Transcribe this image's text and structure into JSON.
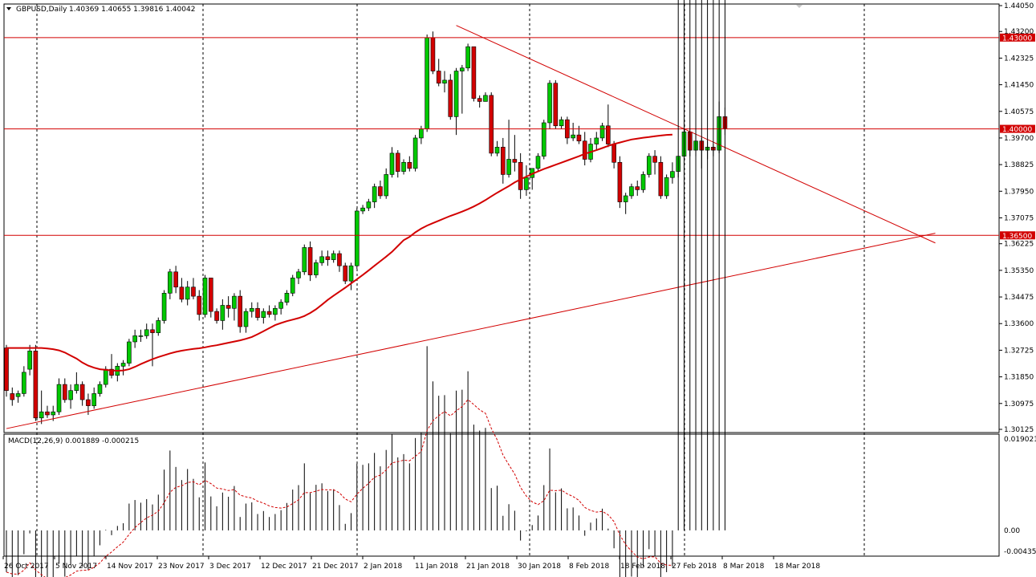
{
  "chart_data": {
    "type": "candlestick",
    "title": "GBPUSD,Daily",
    "ohlc_text": "1.40369 1.40655 1.39816 1.40042",
    "colors": {
      "bull": "#00c800",
      "bear": "#d20000",
      "ma": "#d20000",
      "line": "#d20000",
      "grid": "#000000",
      "macd_hist": "#000000",
      "macd_signal": "#d20000"
    },
    "y_ticks": [
      "1.44050",
      "1.43200",
      "1.42325",
      "1.41450",
      "1.40575",
      "1.39700",
      "1.38825",
      "1.37950",
      "1.37075",
      "1.36225",
      "1.35350",
      "1.34475",
      "1.33600",
      "1.32725",
      "1.31850",
      "1.30975",
      "1.30125"
    ],
    "x_labels": [
      "26 Oct 2017",
      "5 Nov 2017",
      "14 Nov 2017",
      "23 Nov 2017",
      "3 Dec 2017",
      "12 Dec 2017",
      "21 Dec 2017",
      "2 Jan 2018",
      "11 Jan 2018",
      "21 Jan 2018",
      "30 Jan 2018",
      "8 Feb 2018",
      "18 Feb 2018",
      "27 Feb 2018",
      "8 Mar 2018",
      "18 Mar 2018"
    ],
    "ylim": [
      1.30125,
      1.4405
    ],
    "horizontal_levels": [
      {
        "value": 1.43,
        "label": "1.43000"
      },
      {
        "value": 1.4,
        "label": "1.40000"
      },
      {
        "value": 1.365,
        "label": "1.36500"
      }
    ],
    "trendlines": [
      {
        "from": [
          0,
          1.3015
        ],
        "to": [
          159,
          1.3657
        ]
      },
      {
        "from": [
          77,
          1.434
        ],
        "to": [
          159,
          1.3625
        ]
      }
    ],
    "candles": [
      [
        1.328,
        1.329,
        1.312,
        1.314
      ],
      [
        1.313,
        1.315,
        1.309,
        1.311
      ],
      [
        1.312,
        1.314,
        1.31,
        1.313
      ],
      [
        1.313,
        1.322,
        1.312,
        1.32
      ],
      [
        1.321,
        1.329,
        1.319,
        1.327
      ],
      [
        1.327,
        1.329,
        1.304,
        1.305
      ],
      [
        1.305,
        1.314,
        1.303,
        1.307
      ],
      [
        1.307,
        1.309,
        1.305,
        1.306
      ],
      [
        1.306,
        1.309,
        1.304,
        1.307
      ],
      [
        1.307,
        1.318,
        1.306,
        1.316
      ],
      [
        1.316,
        1.318,
        1.31,
        1.311
      ],
      [
        1.311,
        1.316,
        1.308,
        1.314
      ],
      [
        1.314,
        1.32,
        1.313,
        1.316
      ],
      [
        1.316,
        1.317,
        1.309,
        1.311
      ],
      [
        1.311,
        1.313,
        1.306,
        1.309
      ],
      [
        1.309,
        1.315,
        1.308,
        1.313
      ],
      [
        1.313,
        1.317,
        1.312,
        1.316
      ],
      [
        1.316,
        1.322,
        1.315,
        1.321
      ],
      [
        1.321,
        1.326,
        1.318,
        1.319
      ],
      [
        1.319,
        1.323,
        1.317,
        1.322
      ],
      [
        1.322,
        1.324,
        1.319,
        1.323
      ],
      [
        1.323,
        1.331,
        1.322,
        1.33
      ],
      [
        1.33,
        1.334,
        1.328,
        1.332
      ],
      [
        1.332,
        1.334,
        1.33,
        1.332
      ],
      [
        1.332,
        1.336,
        1.331,
        1.334
      ],
      [
        1.334,
        1.336,
        1.322,
        1.333
      ],
      [
        1.333,
        1.338,
        1.332,
        1.337
      ],
      [
        1.337,
        1.347,
        1.336,
        1.346
      ],
      [
        1.346,
        1.354,
        1.344,
        1.353
      ],
      [
        1.353,
        1.355,
        1.346,
        1.348
      ],
      [
        1.348,
        1.351,
        1.343,
        1.344
      ],
      [
        1.344,
        1.35,
        1.342,
        1.348
      ],
      [
        1.348,
        1.351,
        1.344,
        1.345
      ],
      [
        1.345,
        1.347,
        1.337,
        1.339
      ],
      [
        1.339,
        1.352,
        1.338,
        1.351
      ],
      [
        1.351,
        1.351,
        1.338,
        1.34
      ],
      [
        1.34,
        1.341,
        1.336,
        1.337
      ],
      [
        1.337,
        1.344,
        1.334,
        1.342
      ],
      [
        1.342,
        1.345,
        1.338,
        1.341
      ],
      [
        1.341,
        1.346,
        1.337,
        1.345
      ],
      [
        1.345,
        1.347,
        1.333,
        1.335
      ],
      [
        1.335,
        1.341,
        1.333,
        1.34
      ],
      [
        1.34,
        1.343,
        1.338,
        1.341
      ],
      [
        1.341,
        1.343,
        1.337,
        1.338
      ],
      [
        1.338,
        1.341,
        1.336,
        1.34
      ],
      [
        1.34,
        1.342,
        1.338,
        1.339
      ],
      [
        1.339,
        1.342,
        1.337,
        1.341
      ],
      [
        1.341,
        1.344,
        1.339,
        1.343
      ],
      [
        1.343,
        1.347,
        1.342,
        1.346
      ],
      [
        1.346,
        1.352,
        1.345,
        1.351
      ],
      [
        1.351,
        1.354,
        1.349,
        1.353
      ],
      [
        1.353,
        1.362,
        1.352,
        1.361
      ],
      [
        1.361,
        1.363,
        1.35,
        1.352
      ],
      [
        1.352,
        1.357,
        1.351,
        1.356
      ],
      [
        1.356,
        1.36,
        1.355,
        1.358
      ],
      [
        1.358,
        1.36,
        1.355,
        1.357
      ],
      [
        1.357,
        1.36,
        1.356,
        1.359
      ],
      [
        1.359,
        1.36,
        1.353,
        1.355
      ],
      [
        1.355,
        1.356,
        1.349,
        1.35
      ],
      [
        1.35,
        1.356,
        1.347,
        1.355
      ],
      [
        1.355,
        1.374,
        1.354,
        1.373
      ],
      [
        1.373,
        1.375,
        1.372,
        1.374
      ],
      [
        1.374,
        1.377,
        1.373,
        1.376
      ],
      [
        1.376,
        1.382,
        1.374,
        1.381
      ],
      [
        1.381,
        1.383,
        1.377,
        1.378
      ],
      [
        1.378,
        1.387,
        1.377,
        1.385
      ],
      [
        1.385,
        1.394,
        1.384,
        1.392
      ],
      [
        1.392,
        1.393,
        1.384,
        1.386
      ],
      [
        1.386,
        1.39,
        1.385,
        1.389
      ],
      [
        1.389,
        1.391,
        1.386,
        1.387
      ],
      [
        1.387,
        1.398,
        1.386,
        1.397
      ],
      [
        1.397,
        1.401,
        1.395,
        1.4
      ],
      [
        1.4,
        1.431,
        1.399,
        1.43
      ],
      [
        1.43,
        1.432,
        1.418,
        1.419
      ],
      [
        1.419,
        1.423,
        1.414,
        1.415
      ],
      [
        1.415,
        1.419,
        1.412,
        1.416
      ],
      [
        1.416,
        1.418,
        1.403,
        1.404
      ],
      [
        1.404,
        1.42,
        1.398,
        1.419
      ],
      [
        1.419,
        1.421,
        1.405,
        1.42
      ],
      [
        1.42,
        1.428,
        1.419,
        1.427
      ],
      [
        1.427,
        1.427,
        1.409,
        1.41
      ],
      [
        1.41,
        1.411,
        1.407,
        1.409
      ],
      [
        1.409,
        1.412,
        1.409,
        1.411
      ],
      [
        1.411,
        1.412,
        1.391,
        1.392
      ],
      [
        1.392,
        1.396,
        1.391,
        1.394
      ],
      [
        1.394,
        1.397,
        1.382,
        1.385
      ],
      [
        1.385,
        1.403,
        1.384,
        1.39
      ],
      [
        1.39,
        1.398,
        1.386,
        1.389
      ],
      [
        1.389,
        1.392,
        1.377,
        1.38
      ],
      [
        1.38,
        1.388,
        1.378,
        1.384
      ],
      [
        1.384,
        1.387,
        1.38,
        1.387
      ],
      [
        1.387,
        1.392,
        1.386,
        1.391
      ],
      [
        1.391,
        1.403,
        1.39,
        1.402
      ],
      [
        1.402,
        1.416,
        1.4,
        1.415
      ],
      [
        1.415,
        1.416,
        1.4,
        1.401
      ],
      [
        1.401,
        1.404,
        1.4,
        1.403
      ],
      [
        1.403,
        1.404,
        1.395,
        1.397
      ],
      [
        1.397,
        1.402,
        1.396,
        1.398
      ],
      [
        1.398,
        1.401,
        1.395,
        1.396
      ],
      [
        1.396,
        1.399,
        1.388,
        1.39
      ],
      [
        1.39,
        1.397,
        1.389,
        1.395
      ],
      [
        1.395,
        1.399,
        1.393,
        1.397
      ],
      [
        1.397,
        1.402,
        1.396,
        1.401
      ],
      [
        1.401,
        1.408,
        1.394,
        1.395
      ],
      [
        1.395,
        1.396,
        1.387,
        1.389
      ],
      [
        1.389,
        1.391,
        1.374,
        1.376
      ],
      [
        1.376,
        1.379,
        1.372,
        1.378
      ],
      [
        1.378,
        1.382,
        1.377,
        1.381
      ],
      [
        1.381,
        1.383,
        1.378,
        1.38
      ],
      [
        1.38,
        1.386,
        1.379,
        1.385
      ],
      [
        1.385,
        1.392,
        1.384,
        1.391
      ],
      [
        1.391,
        1.393,
        1.385,
        1.389
      ],
      [
        1.389,
        1.391,
        1.377,
        1.378
      ],
      [
        1.378,
        1.385,
        1.377,
        1.384
      ],
      [
        1.384,
        1.389,
        1.382,
        1.386
      ],
      [
        1.386,
        1.391,
        1.384,
        1.391
      ],
      [
        1.391,
        1.4,
        1.39,
        1.399
      ],
      [
        1.399,
        1.399,
        1.391,
        1.393
      ],
      [
        1.393,
        1.398,
        1.391,
        1.396
      ],
      [
        1.396,
        1.397,
        1.387,
        1.393
      ],
      [
        1.393,
        1.396,
        1.39,
        1.394
      ],
      [
        1.394,
        1.395,
        1.391,
        1.393
      ],
      [
        1.393,
        1.409,
        1.392,
        1.404
      ],
      [
        1.404,
        1.407,
        1.398,
        1.4
      ]
    ],
    "ma": [
      1.328,
      1.328,
      1.328,
      1.328,
      1.328,
      1.328,
      1.328,
      1.3278,
      1.3276,
      1.3272,
      1.3265,
      1.3255,
      1.3245,
      1.3232,
      1.3222,
      1.3215,
      1.321,
      1.3208,
      1.3206,
      1.3205,
      1.3206,
      1.321,
      1.3218,
      1.3227,
      1.3235,
      1.3243,
      1.325,
      1.3256,
      1.3262,
      1.3267,
      1.3271,
      1.3274,
      1.3277,
      1.3279,
      1.3282,
      1.3286,
      1.3289,
      1.3293,
      1.3297,
      1.3301,
      1.3305,
      1.331,
      1.3316,
      1.3325,
      1.3335,
      1.3345,
      1.3355,
      1.3362,
      1.3368,
      1.3373,
      1.3378,
      1.3385,
      1.3395,
      1.3407,
      1.3422,
      1.3438,
      1.3452,
      1.3465,
      1.3478,
      1.3492,
      1.3506,
      1.352,
      1.3535,
      1.355,
      1.3565,
      1.358,
      1.3596,
      1.3615,
      1.3634,
      1.3645,
      1.366,
      1.3672,
      1.3682,
      1.369,
      1.3698,
      1.3706,
      1.3714,
      1.3721,
      1.3728,
      1.3736,
      1.3745,
      1.3755,
      1.3766,
      1.3778,
      1.379,
      1.3801,
      1.3812,
      1.3824,
      1.3834,
      1.3843,
      1.3852,
      1.386,
      1.3868,
      1.3875,
      1.3882,
      1.3889,
      1.3896,
      1.3903,
      1.391,
      1.3918,
      1.3924,
      1.393,
      1.3937,
      1.3944,
      1.395,
      1.3955,
      1.396,
      1.3965,
      1.3968,
      1.3971,
      1.3973,
      1.3976,
      1.3978,
      1.398,
      1.3981
    ],
    "macd": {
      "label": "MACD(12,26,9) 0.001889 -0.000215",
      "y_ticks": [
        "0.019021",
        "0.00",
        "-0.004351"
      ],
      "ylim": [
        -0.004351,
        0.019021
      ]
    }
  }
}
